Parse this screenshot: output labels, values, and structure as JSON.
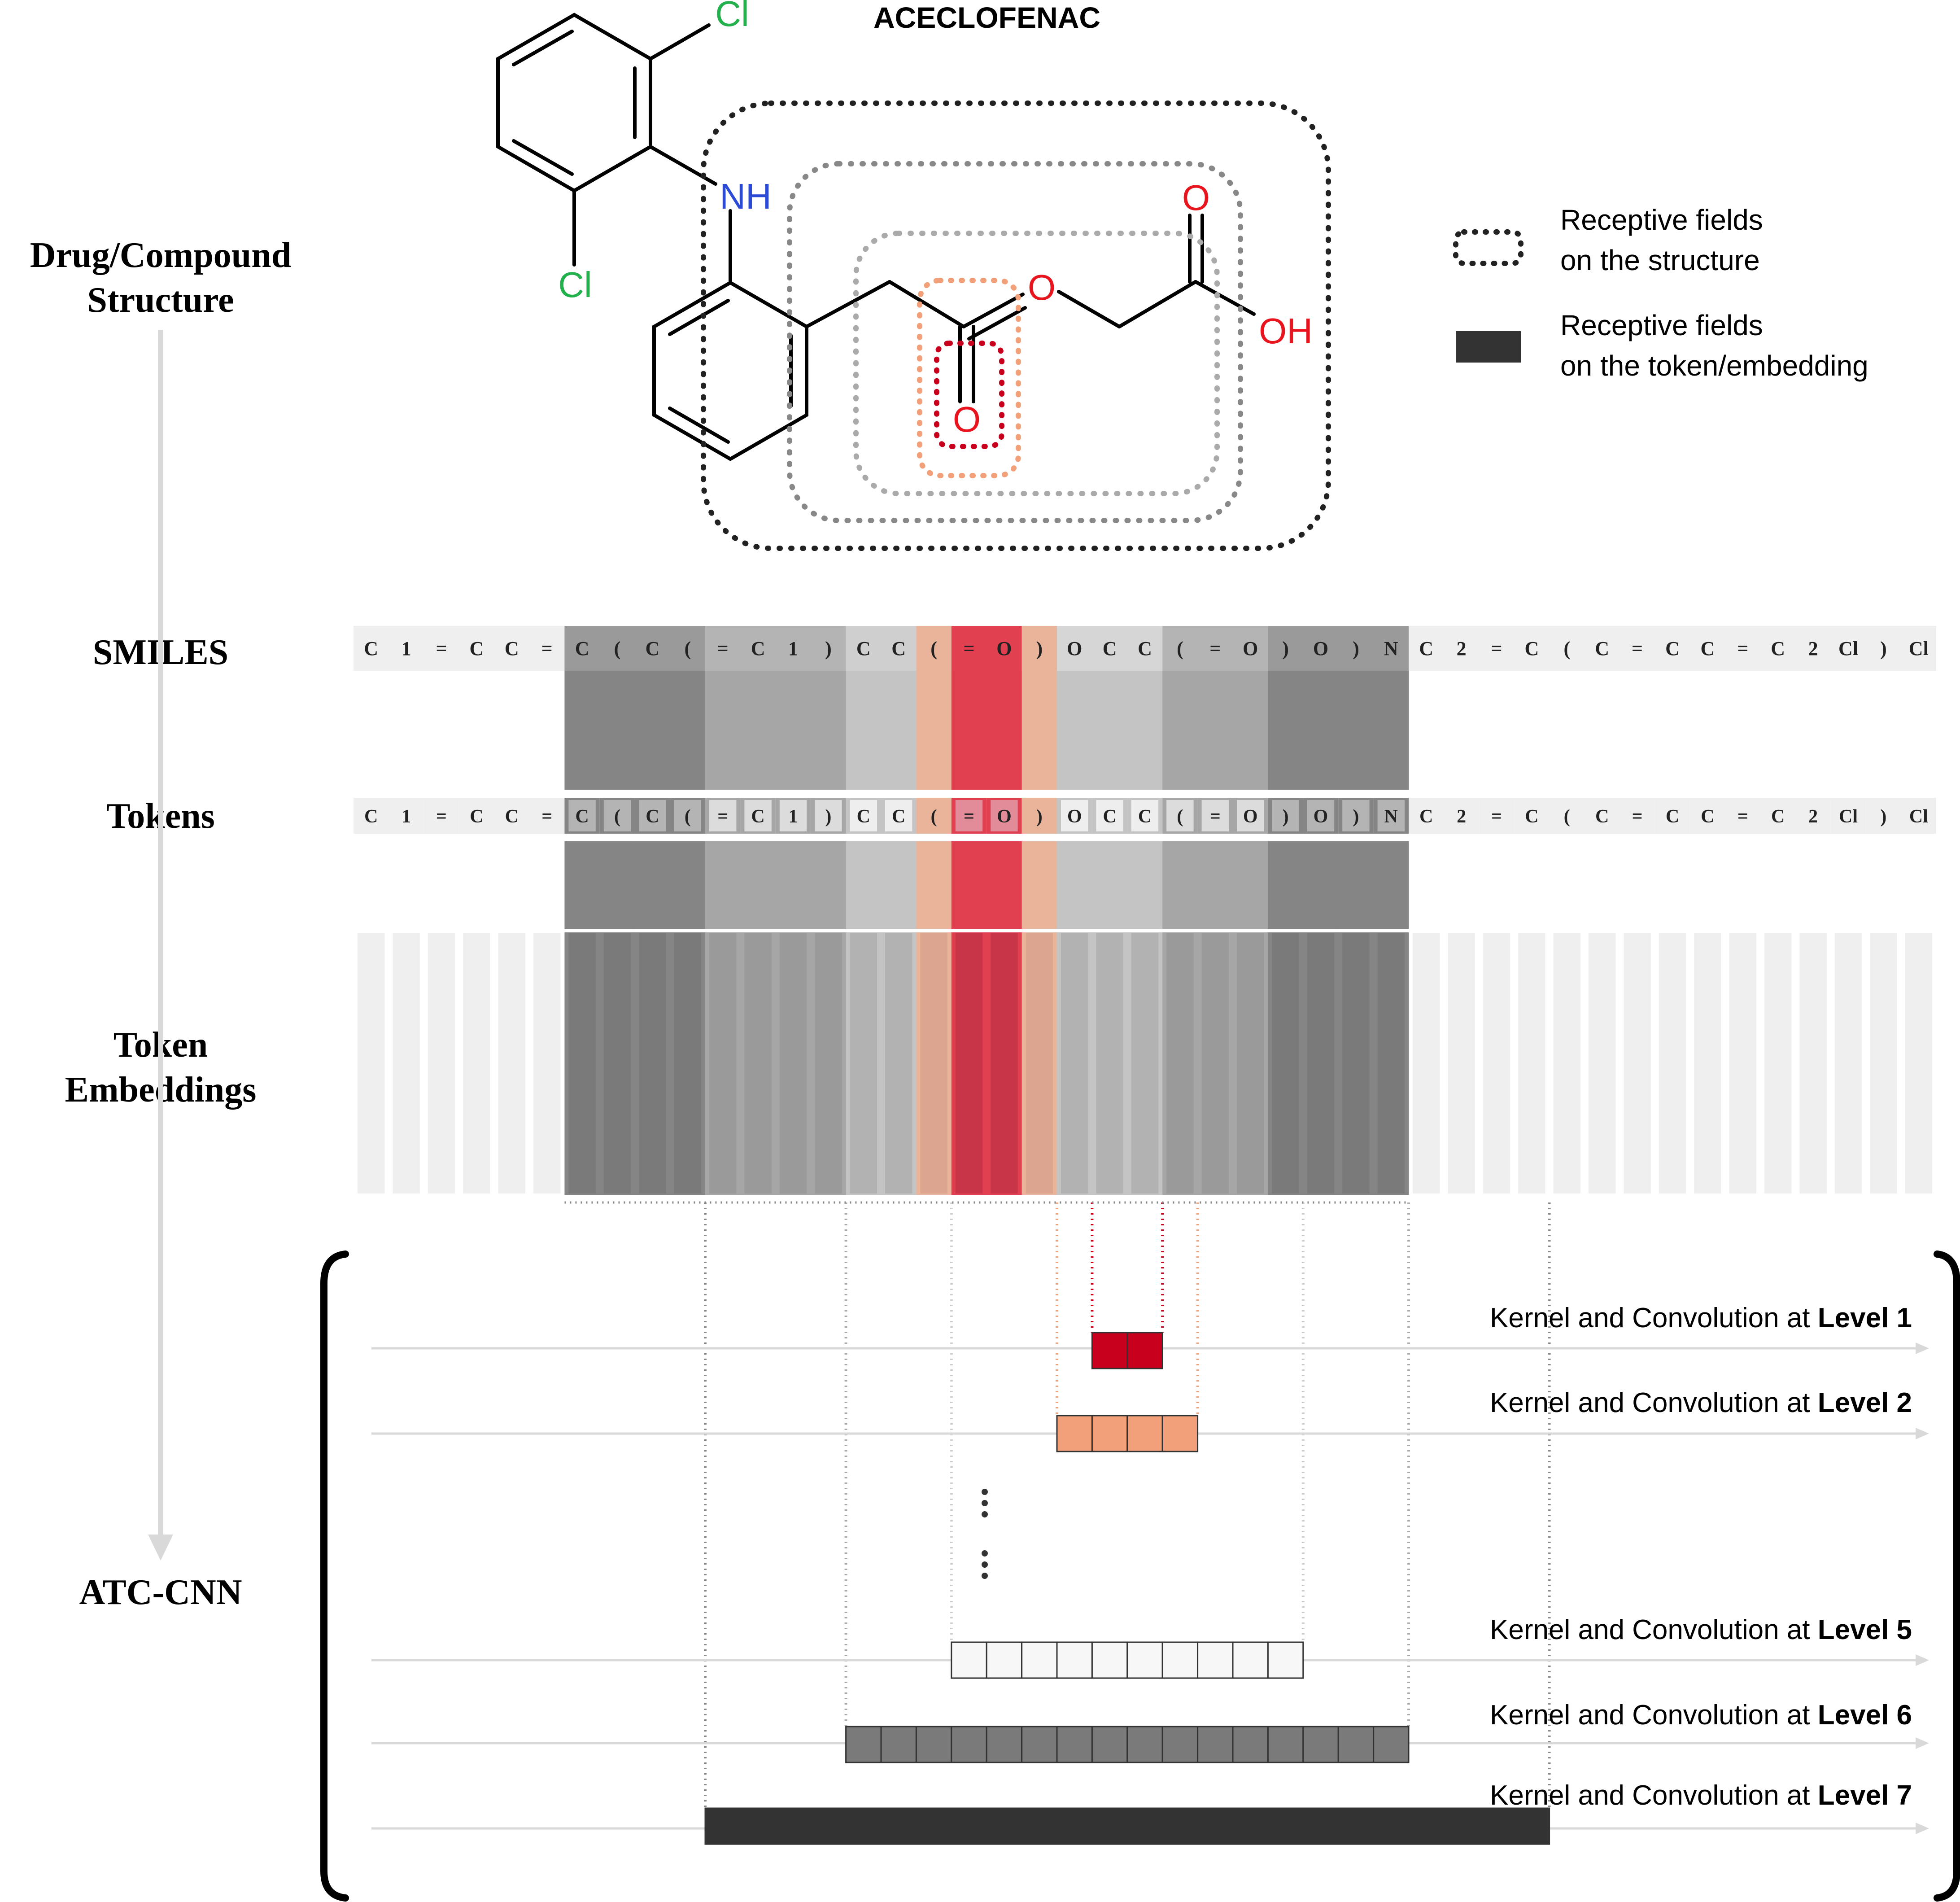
{
  "title": "ACECLOFENAC",
  "row_labels": {
    "structure_line1": "Drug/Compound",
    "structure_line2": "Structure",
    "smiles": "SMILES",
    "tokens": "Tokens",
    "embeddings_line1": "Token",
    "embeddings_line2": "Embeddings",
    "model": "ATC-CNN"
  },
  "legend": {
    "structure_line1": "Receptive fields",
    "structure_line2": "on the structure",
    "token_line1": "Receptive fields",
    "token_line2": "on the token/embedding"
  },
  "atoms": {
    "cl_top": "Cl",
    "cl_bottom": "Cl",
    "nh": "NH",
    "o_top": "O",
    "o_ester": "O",
    "o_carbonyl": "O",
    "oh": "OH"
  },
  "tokens": [
    "C",
    "1",
    "=",
    "C",
    "C",
    "=",
    "C",
    "(",
    "C",
    "(",
    "=",
    "C",
    "1",
    ")",
    "C",
    "C",
    "(",
    "=",
    "O",
    ")",
    "O",
    "C",
    "C",
    "(",
    "=",
    "O",
    ")",
    "O",
    ")",
    "N",
    "C",
    "2",
    "=",
    "C",
    "(",
    "C",
    "=",
    "C",
    "C",
    "=",
    "C",
    "2",
    "Cl",
    ")",
    "Cl"
  ],
  "levels": [
    {
      "prefix": "Kernel and Convolution at ",
      "level": "Level 1",
      "cells": 2,
      "color": "#c8001e"
    },
    {
      "prefix": "Kernel and Convolution at ",
      "level": "Level 2",
      "cells": 4,
      "color": "#f2a07a"
    },
    {
      "prefix": "Kernel and Convolution at ",
      "level": "Level 5",
      "cells": 10,
      "color": "#f7f7f7"
    },
    {
      "prefix": "Kernel and Convolution at ",
      "level": "Level 6",
      "cells": 16,
      "color": "#7a7a7a"
    },
    {
      "prefix": "Kernel and Convolution at ",
      "level": "Level 7",
      "cells": 24,
      "color": "#333333"
    }
  ],
  "colors": {
    "atom_cl": "#22b14c",
    "atom_n": "#2b4bd6",
    "atom_o": "#e8141e",
    "field_red": "#c8001e",
    "field_orange": "#f2a07a",
    "field_light_gray": "#aaaaaa",
    "field_mid_gray": "#888888",
    "field_dark": "#222222",
    "arrow_gray": "#d9d9d9"
  }
}
